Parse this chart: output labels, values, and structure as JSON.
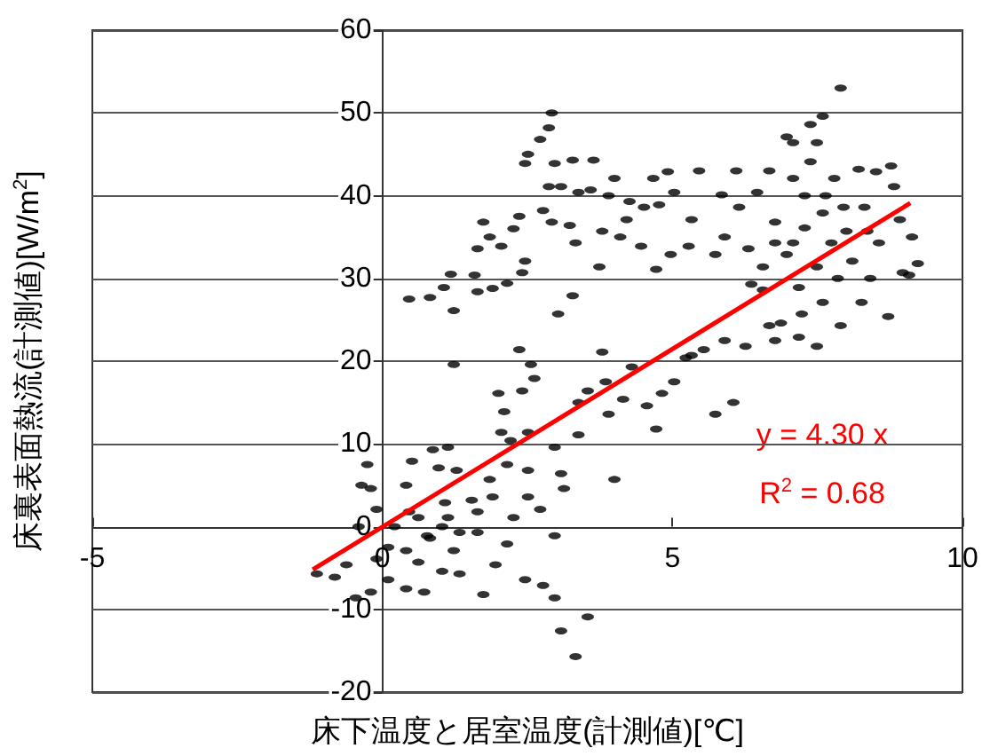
{
  "chart_data": {
    "type": "scatter",
    "xlabel": "床下温度と居室温度(計測値)[℃]",
    "ylabel": "床裏表面熱流(計測値)[W/m$^{2}$]",
    "annotations": [
      "y = 4.30 x",
      "R$^{2}$ = 0.68"
    ],
    "xlim": [
      -5,
      10
    ],
    "xticks": [
      -5,
      0,
      5,
      10
    ],
    "ylim": [
      -20,
      60
    ],
    "yticks": [
      -20,
      -10,
      0,
      10,
      20,
      30,
      40,
      50,
      60
    ],
    "grid": "y",
    "marker": "circle",
    "series": [
      {
        "color": "#000000",
        "x": [
          0.46,
          0.82,
          1.06,
          1.18,
          1.23,
          1.59,
          1.64,
          1.9,
          2.15,
          1.64,
          1.74,
          1.85,
          2.05,
          2.26,
          2.36,
          2.46,
          2.41,
          2.46,
          2.51,
          2.72,
          2.87,
          2.92,
          2.97,
          2.77,
          2.87,
          3.08,
          3.28,
          3.64,
          3.38,
          3.59,
          3.9,
          4.0,
          2.92,
          3.23,
          3.33,
          3.03,
          3.28,
          3.74,
          3.79,
          4.1,
          4.21,
          4.26,
          4.51,
          4.46,
          4.67,
          4.92,
          4.72,
          4.77,
          4.97,
          5.03,
          5.28,
          5.33,
          5.46,
          5.74,
          5.85,
          5.9,
          6.1,
          6.15,
          6.31,
          6.36,
          6.46,
          6.56,
          6.67,
          6.77,
          6.67,
          6.87,
          6.97,
          7.08,
          6.97,
          7.08,
          7.18,
          7.23,
          7.28,
          7.38,
          7.59,
          7.49,
          7.38,
          7.49,
          7.59,
          7.64,
          7.74,
          7.79,
          7.9,
          7.85,
          7.9,
          8.0,
          8.1,
          8.21,
          8.26,
          8.31,
          8.41,
          8.51,
          8.56,
          8.72,
          8.77,
          8.82,
          8.92,
          8.97,
          9.08,
          9.13,
          9.23,
          7.59,
          7.28,
          6.56,
          6.77,
          7.95,
          8.36,
          7.08,
          6.77,
          5.9,
          5.54,
          6.26,
          7.18,
          7.49,
          4.3,
          5.23,
          1.23,
          2.36,
          2.56,
          3.79,
          2.0,
          2.41,
          2.62,
          2.1,
          3.38,
          3.54,
          3.85,
          3.9,
          4.15,
          4.56,
          4.72,
          4.82,
          5.03,
          5.74,
          6.05,
          5.33,
          4.0,
          3.08,
          3.13,
          3.38,
          2.97,
          2.51,
          2.05,
          2.21,
          1.85,
          1.9,
          2.15,
          2.51,
          2.51,
          2.72,
          2.97,
          2.77,
          2.97,
          3.08,
          3.33,
          3.54,
          2.46,
          1.74,
          1.13,
          1.28,
          0.87,
          0.97,
          0.51,
          0.41,
          -0.26,
          -0.2,
          -0.36,
          -0.1,
          1.54,
          1.64,
          1.13,
          0.62,
          0.21,
          -0.41,
          0.82,
          1.23,
          0.41,
          0.1,
          0.62,
          1.03,
          0.1,
          0.41,
          0.72,
          1.33,
          1.95,
          2.15,
          2.26,
          1.64,
          -1.13,
          -0.82,
          -0.62,
          -0.46,
          -0.1,
          -0.2,
          0.77,
          1.03,
          1.33,
          0.46,
          1.08
        ],
        "values": [
          27.5,
          27.7,
          28.9,
          30.5,
          26.1,
          30.4,
          28.4,
          28.8,
          29.4,
          33.6,
          36.8,
          35,
          33.9,
          36,
          37.5,
          32.1,
          30.7,
          43.9,
          45,
          46.8,
          48.2,
          50,
          43.9,
          38.2,
          41.1,
          41.1,
          44.3,
          44.3,
          40.4,
          40.7,
          40,
          42.1,
          36.8,
          36.4,
          34.3,
          25.7,
          27.9,
          31.4,
          35.7,
          35,
          37.1,
          39.3,
          38.6,
          33.9,
          42.1,
          42.9,
          31.1,
          38.9,
          32.9,
          40.4,
          33.9,
          37.1,
          43,
          32.9,
          40.1,
          35,
          43,
          38.6,
          33.6,
          29.3,
          40.4,
          28.6,
          43,
          36.8,
          24.3,
          24.6,
          47.1,
          46.4,
          32.9,
          34.3,
          28.9,
          25.7,
          36.1,
          48.6,
          49.6,
          46.4,
          44.1,
          31.4,
          27.1,
          40,
          34.3,
          42.1,
          53,
          30,
          24.3,
          35.7,
          32.1,
          43.2,
          27.1,
          38.6,
          30,
          42.9,
          34.3,
          25.4,
          43.6,
          41.1,
          37.1,
          30.7,
          30.4,
          35,
          31.8,
          37.9,
          40,
          31.4,
          34.3,
          38.6,
          35.7,
          42.1,
          22.5,
          22.5,
          21.4,
          21.8,
          22.9,
          21.8,
          19.3,
          20.4,
          19.6,
          21.4,
          19.6,
          21.1,
          16.1,
          16.4,
          17.9,
          13.9,
          15,
          16.4,
          17.5,
          13.6,
          15.4,
          14.6,
          11.8,
          16.1,
          17.5,
          13.6,
          15,
          20.7,
          5.7,
          6.4,
          4.6,
          11.1,
          9.6,
          11.4,
          11.4,
          10.4,
          5.7,
          3.6,
          7.5,
          6.8,
          3.6,
          2.1,
          -1.1,
          -7.1,
          -8.6,
          -12.6,
          -15.7,
          -10.9,
          -6.4,
          -8.2,
          9.6,
          6.8,
          9.3,
          7.1,
          7.9,
          5,
          7.5,
          4.6,
          5,
          2.1,
          3.2,
          -0.7,
          1.1,
          1.1,
          0,
          0,
          -1.4,
          -2.9,
          -2.9,
          -2.5,
          -4.3,
          -5.4,
          -6.4,
          -7.5,
          -7.9,
          -5.7,
          -4.6,
          -2.1,
          1.1,
          1.8,
          -5.7,
          -6.1,
          -4.6,
          -8.6,
          -3.9,
          -7.9,
          -1.1,
          0,
          -0.7,
          1.8,
          2.9
        ]
      },
      {
        "type": "line",
        "color": "#ff0000",
        "marker": "none",
        "x": [
          -1.2,
          9.1
        ],
        "values": [
          -5.2,
          39.1
        ]
      }
    ]
  }
}
